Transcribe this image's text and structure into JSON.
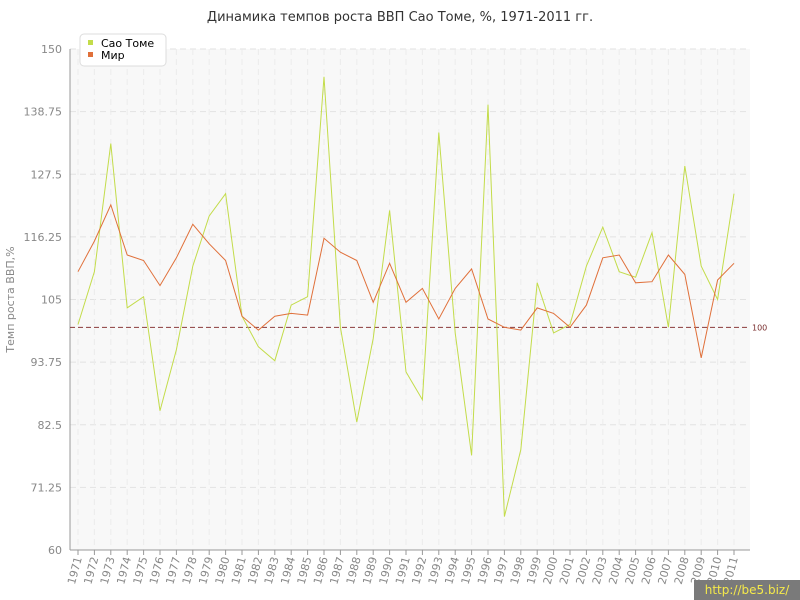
{
  "chart_data": {
    "type": "line",
    "title": "Динамика темпов роста ВВП Сао Томе, %, 1971-2011 гг.",
    "ylabel": "Темп роста ВВП,%",
    "xlabel": "",
    "ylim": [
      60,
      150
    ],
    "yticks": [
      "60",
      "71.25",
      "82.5",
      "93.75",
      "105",
      "116.25",
      "127.5",
      "138.75",
      "150"
    ],
    "grid": true,
    "legend": "top-left",
    "reference_line": {
      "value": 100,
      "label": "100",
      "color": "#8b3a3a"
    },
    "categories": [
      "1971",
      "1972",
      "1973",
      "1974",
      "1975",
      "1976",
      "1977",
      "1978",
      "1979",
      "1980",
      "1981",
      "1982",
      "1983",
      "1984",
      "1985",
      "1986",
      "1987",
      "1988",
      "1989",
      "1990",
      "1991",
      "1992",
      "1993",
      "1994",
      "1995",
      "1996",
      "1997",
      "1998",
      "1999",
      "2000",
      "2001",
      "2002",
      "2003",
      "2004",
      "2005",
      "2006",
      "2007",
      "2008",
      "2009",
      "2010",
      "2011"
    ],
    "series": [
      {
        "name": "Сао Томе",
        "color": "#c3dc4a",
        "values": [
          100.5,
          110,
          133,
          103.5,
          105.5,
          85,
          96,
          111,
          120,
          124,
          102,
          96.5,
          94,
          104,
          105.5,
          145,
          100,
          83,
          98,
          121,
          92,
          87,
          135,
          99,
          77,
          140,
          66,
          78,
          108,
          99,
          100.5,
          111,
          118,
          110,
          109,
          117,
          100,
          129,
          111,
          105,
          124
        ]
      },
      {
        "name": "Мир",
        "color": "#e0703a",
        "values": [
          110,
          115.5,
          122,
          113,
          112,
          107.5,
          112.5,
          118.5,
          115,
          112,
          102,
          99.5,
          102,
          102.5,
          102.2,
          116,
          113.5,
          112,
          104.5,
          111.5,
          104.5,
          107,
          101.5,
          107,
          110.5,
          101.5,
          100,
          99.5,
          103.5,
          102.5,
          100,
          104,
          112.5,
          113,
          108,
          108.2,
          113,
          109.5,
          94.5,
          108.5,
          111.5
        ]
      }
    ]
  },
  "watermark": "http://be5.biz/"
}
